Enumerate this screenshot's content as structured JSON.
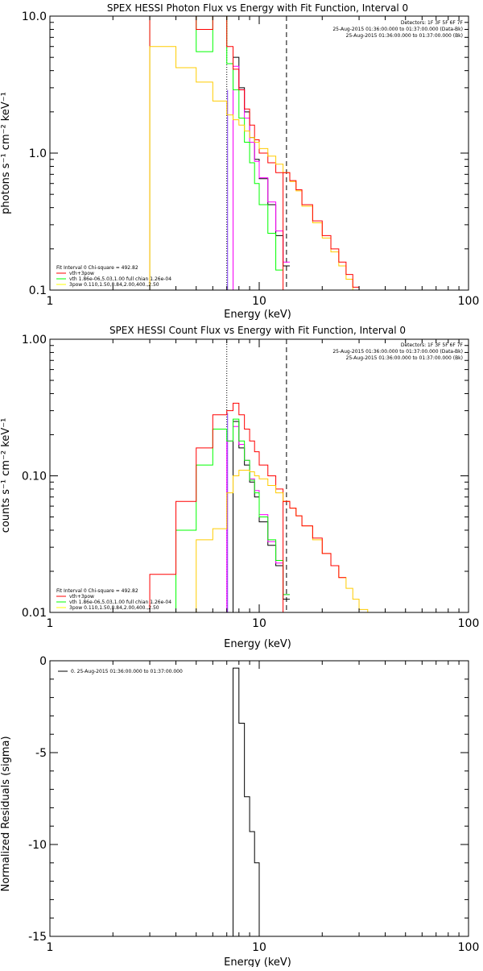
{
  "chart_data": [
    {
      "type": "line",
      "title": "SPEX HESSI Photon Flux vs Energy with Fit Function, Interval 0",
      "xlabel": "Energy (keV)",
      "ylabel": "photons s⁻¹ cm⁻² keV⁻¹",
      "xscale": "log",
      "yscale": "log",
      "xlim": [
        1,
        100
      ],
      "ylim": [
        0.1,
        10
      ],
      "x_tick_labels": [
        "1",
        "10",
        "100"
      ],
      "y_tick_labels": [
        "10.0",
        "1.0",
        "0.1"
      ],
      "y_tick_values": [
        10,
        1,
        0.1
      ],
      "fit_range_lines": [
        7,
        13.5
      ],
      "header": {
        "detectors": "Detectors: 1F 3F 5F 6F 7F",
        "line1": "25-Aug-2015 01:36:00.000 to 01:37:00.000 (Data-Bk)",
        "line2": "25-Aug-2015 01:36:00.000 to 01:37:00.000 (Bk)"
      },
      "legend": {
        "title": "Fit Interval 0   Chi-square = 492.82",
        "entries": [
          {
            "label": "vth+3pow",
            "color": "#ff0000"
          },
          {
            "label": "vth 1.86e-06,5.03,1.00  full chian 1.26e-04",
            "color": "#00ff00"
          },
          {
            "label": "3pow 0.110,1.50,8.84,2.00,400.,2.50",
            "color": "#ffff00"
          }
        ]
      },
      "bin_edges": [
        3.0,
        4.0,
        5.0,
        6.0,
        7.0,
        7.5,
        8.0,
        8.5,
        9.0,
        9.5,
        10.0,
        11.0,
        12.0,
        13.0,
        14.0,
        15.0,
        16.0,
        18.0,
        20.0,
        22.0,
        24.0,
        26.0,
        28.0,
        30.0,
        33.0
      ],
      "series": [
        {
          "color": "#000000",
          "start_bin": 5,
          "values": [
            5.0,
            3.0,
            2.0,
            1.3,
            0.9,
            0.65,
            0.42,
            0.25,
            0.15
          ]
        },
        {
          "color": "#ff00ff",
          "start_bin": 5,
          "values": [
            4.3,
            2.9,
            1.8,
            1.2,
            0.87,
            0.66,
            0.44,
            0.27,
            0.16
          ]
        },
        {
          "color": "#00ff00",
          "start_bin": 0,
          "values": [
            20,
            20,
            5.5,
            10,
            4.5,
            2.9,
            1.8,
            1.2,
            0.85,
            0.6,
            0.42,
            0.26,
            0.14
          ]
        },
        {
          "color": "#ff0000",
          "start_bin": 0,
          "values": [
            20,
            20,
            8.0,
            14,
            6.0,
            4.1,
            2.9,
            2.1,
            1.6,
            1.25,
            1.0,
            0.85,
            0.72
          ]
        },
        {
          "color": "#ffcc00",
          "start_bin": 0,
          "values": [
            6.0,
            4.2,
            3.3,
            2.4,
            1.9,
            1.75,
            1.6,
            1.45,
            1.3,
            1.2,
            1.08,
            0.95,
            0.83,
            0.72,
            0.62,
            0.53,
            0.41,
            0.31,
            0.24,
            0.19,
            0.15,
            0.12,
            0.1,
            0.08
          ]
        },
        {
          "color": "#ff0000",
          "start_bin": 13,
          "values": [
            0.72,
            0.63,
            0.54,
            0.42,
            0.32,
            0.25,
            0.2,
            0.16,
            0.13,
            0.105,
            0.085
          ]
        }
      ]
    },
    {
      "type": "line",
      "title": "SPEX HESSI Count Flux vs Energy with Fit Function, Interval 0",
      "xlabel": "Energy (keV)",
      "ylabel": "counts s⁻¹ cm⁻² keV⁻¹",
      "xscale": "log",
      "yscale": "log",
      "xlim": [
        1,
        100
      ],
      "ylim": [
        0.01,
        1
      ],
      "x_tick_labels": [
        "1",
        "10",
        "100"
      ],
      "y_tick_labels": [
        "1.00",
        "0.10",
        "0.01"
      ],
      "y_tick_values": [
        1,
        0.1,
        0.01
      ],
      "fit_range_lines": [
        7,
        13.5
      ],
      "header": {
        "detectors": "Detectors: 1F 3F 5F 6F 7F",
        "line1": "25-Aug-2015 01:36:00.000 to 01:37:00.000 (Data-Bk)",
        "line2": "25-Aug-2015 01:36:00.000 to 01:37:00.000 (Bk)"
      },
      "legend": {
        "title": "Fit Interval 0   Chi-square = 492.82",
        "entries": [
          {
            "label": "vth+3pow",
            "color": "#ff0000"
          },
          {
            "label": "vth 1.86e-06,5.03,1.00  full chian 1.26e-04",
            "color": "#00ff00"
          },
          {
            "label": "3pow 0.110,1.50,8.84,2.00,400.,2.50",
            "color": "#ffff00"
          }
        ]
      },
      "bin_edges": [
        3.0,
        4.0,
        5.0,
        6.0,
        7.0,
        7.5,
        8.0,
        8.5,
        9.0,
        9.5,
        10.0,
        11.0,
        12.0,
        13.0,
        14.0,
        15.0,
        16.0,
        18.0,
        20.0,
        22.0,
        24.0,
        26.0,
        28.0,
        30.0,
        33.0,
        36.0,
        40.0
      ],
      "series": [
        {
          "color": "#000000",
          "start_bin": 5,
          "values": [
            0.25,
            0.16,
            0.12,
            0.09,
            0.07,
            0.046,
            0.031,
            0.022,
            0.0125
          ]
        },
        {
          "color": "#ff00ff",
          "start_bin": 4,
          "values": [
            0.18,
            0.23,
            0.17,
            0.13,
            0.095,
            0.078,
            0.052,
            0.033,
            0.023,
            0.0135
          ]
        },
        {
          "color": "#00ff00",
          "start_bin": 1,
          "values": [
            0.04,
            0.12,
            0.22,
            0.18,
            0.26,
            0.18,
            0.13,
            0.093,
            0.075,
            0.05,
            0.034,
            0.024,
            0.0135
          ]
        },
        {
          "color": "#ff0000",
          "start_bin": 0,
          "values": [
            0.019,
            0.065,
            0.16,
            0.28,
            0.3,
            0.34,
            0.28,
            0.22,
            0.18,
            0.15,
            0.12,
            0.1,
            0.08,
            0.065
          ]
        },
        {
          "color": "#ffcc00",
          "start_bin": 1,
          "values": [
            0.008,
            0.034,
            0.041,
            0.075,
            0.1,
            0.11,
            0.11,
            0.107,
            0.1,
            0.095,
            0.085,
            0.075,
            0.065,
            0.058,
            0.051,
            0.043,
            0.034,
            0.027,
            0.022,
            0.018,
            0.015,
            0.0125,
            0.0105,
            0.0085,
            0.007
          ]
        },
        {
          "color": "#ff0000",
          "start_bin": 13,
          "values": [
            0.065,
            0.058,
            0.051,
            0.043,
            0.035,
            0.027,
            0.022,
            0.018
          ]
        }
      ]
    },
    {
      "type": "line",
      "title": "",
      "xlabel": "Energy (keV)",
      "ylabel": "Normalized Residuals (sigma)",
      "xscale": "log",
      "yscale": "linear",
      "xlim": [
        1,
        100
      ],
      "ylim": [
        -15,
        0
      ],
      "x_tick_labels": [
        "1",
        "10",
        "100"
      ],
      "y_tick_labels": [
        "0",
        "-5",
        "-10",
        "-15"
      ],
      "y_tick_values": [
        0,
        -5,
        -10,
        -15
      ],
      "legend": {
        "title": "",
        "entries": [
          {
            "label": "0. 25-Aug-2015 01:36:00.000 to 01:37:00.000",
            "color": "#000000"
          }
        ]
      },
      "bin_edges": [
        7.0,
        7.5,
        8.0,
        8.5,
        9.0,
        9.5,
        10.0,
        11.0,
        12.0,
        13.0
      ],
      "series": [
        {
          "color": "#000000",
          "start_bin": 0,
          "values": [
            -15,
            -0.4,
            -3.4,
            -7.4,
            -9.3,
            -11.0,
            -15,
            -15,
            -15
          ]
        }
      ]
    }
  ]
}
